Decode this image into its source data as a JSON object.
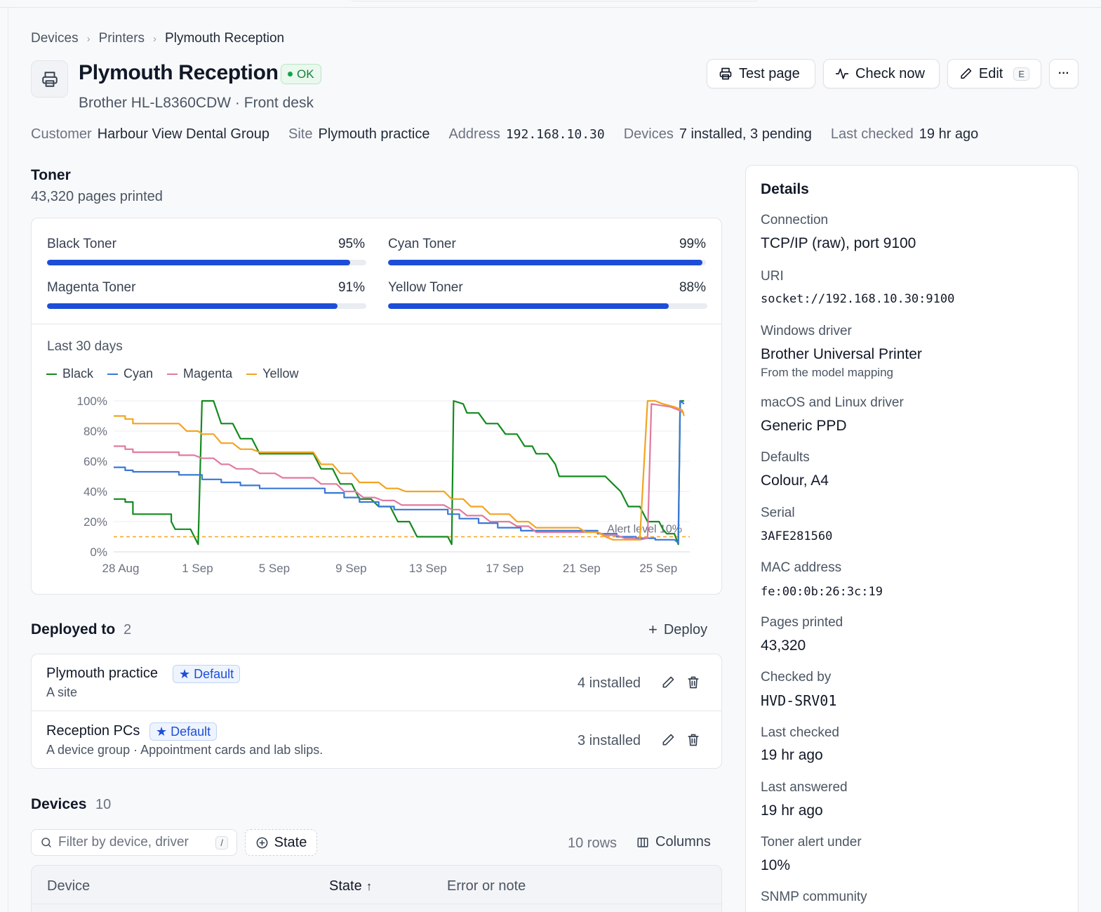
{
  "breadcrumb": [
    "Devices",
    "Printers",
    "Plymouth Reception"
  ],
  "header": {
    "title": "Plymouth Reception",
    "status": "OK",
    "subtitle": "Brother HL-L8360CDW · Front desk",
    "actions": {
      "test_page": "Test page",
      "check_now": "Check now",
      "edit": "Edit",
      "edit_shortcut": "E",
      "more": "···"
    }
  },
  "meta": [
    {
      "key": "Customer",
      "value": "Harbour View Dental Group"
    },
    {
      "key": "Site",
      "value": "Plymouth practice"
    },
    {
      "key": "Address",
      "value": "192.168.10.30"
    },
    {
      "key": "Devices",
      "value": "7 installed, 3 pending"
    },
    {
      "key": "Last checked",
      "value": "19 hr ago"
    }
  ],
  "toner": {
    "title": "Toner",
    "pages": "43,320 pages printed",
    "levels": [
      {
        "name": "Black Toner",
        "pct_label": "95%",
        "fraction": 0.95
      },
      {
        "name": "Cyan Toner",
        "pct_label": "99%",
        "fraction": 0.99
      },
      {
        "name": "Magenta Toner",
        "pct_label": "91%",
        "fraction": 0.91
      },
      {
        "name": "Yellow Toner",
        "pct_label": "88%",
        "fraction": 0.88
      }
    ]
  },
  "chart_data": {
    "type": "line",
    "title": "Last 30 days",
    "x_start": "28 Aug",
    "xticks": [
      {
        "day": 0,
        "label": "28 Aug"
      },
      {
        "day": 4,
        "label": "1 Sep"
      },
      {
        "day": 8,
        "label": "5 Sep"
      },
      {
        "day": 12,
        "label": "9 Sep"
      },
      {
        "day": 16,
        "label": "13 Sep"
      },
      {
        "day": 20,
        "label": "17 Sep"
      },
      {
        "day": 24,
        "label": "21 Sep"
      },
      {
        "day": 28,
        "label": "25 Sep"
      }
    ],
    "yticks": [
      "0%",
      "20%",
      "40%",
      "60%",
      "80%",
      "100%"
    ],
    "ylim": [
      0,
      100
    ],
    "xlim": [
      0,
      30
    ],
    "threshold": {
      "value": 10,
      "label": "Alert level 10%"
    },
    "series": [
      {
        "name": "Black",
        "color": "#138a1e",
        "points": [
          [
            0,
            35
          ],
          [
            0.6,
            35
          ],
          [
            0.6,
            33
          ],
          [
            1.0,
            33
          ],
          [
            1.0,
            25
          ],
          [
            3.0,
            25
          ],
          [
            3.0,
            20
          ],
          [
            3.2,
            15
          ],
          [
            4.0,
            15
          ],
          [
            4.4,
            5
          ],
          [
            4.6,
            100
          ],
          [
            5.2,
            100
          ],
          [
            5.6,
            85
          ],
          [
            6.2,
            85
          ],
          [
            6.6,
            75
          ],
          [
            7.2,
            75
          ],
          [
            7.6,
            65
          ],
          [
            10.4,
            65
          ],
          [
            10.8,
            55
          ],
          [
            11.4,
            55
          ],
          [
            11.8,
            45
          ],
          [
            12.4,
            45
          ],
          [
            12.8,
            35
          ],
          [
            13.4,
            35
          ],
          [
            13.8,
            30
          ],
          [
            14.4,
            30
          ],
          [
            14.8,
            20
          ],
          [
            15.4,
            20
          ],
          [
            15.8,
            10
          ],
          [
            17.4,
            10
          ],
          [
            17.6,
            5
          ],
          [
            17.7,
            100
          ],
          [
            18.2,
            98
          ],
          [
            18.4,
            92
          ],
          [
            19.0,
            92
          ],
          [
            19.4,
            85
          ],
          [
            20.0,
            85
          ],
          [
            20.4,
            78
          ],
          [
            21.0,
            78
          ],
          [
            21.4,
            70
          ],
          [
            21.8,
            70
          ],
          [
            22.0,
            65
          ],
          [
            22.6,
            65
          ],
          [
            23.0,
            58
          ],
          [
            23.2,
            50
          ],
          [
            25.6,
            50
          ],
          [
            26.0,
            45
          ],
          [
            26.4,
            40
          ],
          [
            26.8,
            30
          ],
          [
            27.4,
            30
          ],
          [
            27.6,
            25
          ],
          [
            27.8,
            20
          ],
          [
            28.4,
            20
          ],
          [
            28.6,
            15
          ],
          [
            28.8,
            12
          ],
          [
            29.2,
            12
          ],
          [
            29.4,
            5
          ],
          [
            29.5,
            100
          ],
          [
            29.7,
            100
          ]
        ]
      },
      {
        "name": "Cyan",
        "color": "#3a78d6",
        "points": [
          [
            0,
            56
          ],
          [
            0.6,
            56
          ],
          [
            0.6,
            54
          ],
          [
            1.0,
            54
          ],
          [
            1.0,
            53
          ],
          [
            3.4,
            53
          ],
          [
            3.4,
            51
          ],
          [
            4.6,
            51
          ],
          [
            4.6,
            48
          ],
          [
            5.6,
            48
          ],
          [
            5.6,
            46
          ],
          [
            6.6,
            46
          ],
          [
            6.6,
            44
          ],
          [
            7.6,
            44
          ],
          [
            7.6,
            42
          ],
          [
            11.0,
            42
          ],
          [
            11.0,
            39
          ],
          [
            12.0,
            39
          ],
          [
            12.0,
            36
          ],
          [
            12.8,
            36
          ],
          [
            12.8,
            33
          ],
          [
            13.8,
            33
          ],
          [
            13.8,
            30
          ],
          [
            14.6,
            30
          ],
          [
            14.6,
            28
          ],
          [
            17.4,
            28
          ],
          [
            17.4,
            25
          ],
          [
            18.0,
            25
          ],
          [
            18.0,
            22
          ],
          [
            19.0,
            22
          ],
          [
            19.0,
            19
          ],
          [
            20.0,
            19
          ],
          [
            20.0,
            16
          ],
          [
            21.2,
            16
          ],
          [
            21.2,
            14
          ],
          [
            25.2,
            14
          ],
          [
            25.2,
            12
          ],
          [
            26.2,
            12
          ],
          [
            26.2,
            10
          ],
          [
            27.2,
            10
          ],
          [
            27.2,
            9
          ],
          [
            28.2,
            9
          ],
          [
            28.2,
            8
          ],
          [
            29.2,
            8
          ],
          [
            29.4,
            6
          ],
          [
            29.5,
            100
          ],
          [
            29.7,
            98
          ]
        ]
      },
      {
        "name": "Magenta",
        "color": "#e07aa0",
        "points": [
          [
            0,
            70
          ],
          [
            0.6,
            70
          ],
          [
            0.6,
            68
          ],
          [
            1.0,
            68
          ],
          [
            1.0,
            66
          ],
          [
            3.4,
            66
          ],
          [
            3.4,
            64
          ],
          [
            4.2,
            64
          ],
          [
            4.6,
            62
          ],
          [
            5.2,
            62
          ],
          [
            5.6,
            58
          ],
          [
            6.0,
            58
          ],
          [
            6.4,
            55
          ],
          [
            7.2,
            55
          ],
          [
            7.6,
            52
          ],
          [
            8.4,
            52
          ],
          [
            8.8,
            49
          ],
          [
            10.4,
            49
          ],
          [
            10.8,
            45
          ],
          [
            11.6,
            45
          ],
          [
            12.0,
            40
          ],
          [
            12.6,
            40
          ],
          [
            13.0,
            36
          ],
          [
            13.6,
            36
          ],
          [
            14.0,
            34
          ],
          [
            14.6,
            34
          ],
          [
            15.0,
            31
          ],
          [
            17.2,
            31
          ],
          [
            17.6,
            28
          ],
          [
            18.0,
            28
          ],
          [
            18.4,
            24
          ],
          [
            19.2,
            24
          ],
          [
            19.6,
            20
          ],
          [
            20.6,
            20
          ],
          [
            21.0,
            17
          ],
          [
            21.6,
            17
          ],
          [
            22.0,
            13
          ],
          [
            25.2,
            13
          ],
          [
            25.6,
            11
          ],
          [
            26.2,
            11
          ],
          [
            26.6,
            9
          ],
          [
            27.0,
            9
          ],
          [
            27.4,
            8
          ],
          [
            27.8,
            9
          ],
          [
            28.0,
            98
          ],
          [
            29.0,
            96
          ],
          [
            29.4,
            94
          ],
          [
            29.7,
            92
          ]
        ]
      },
      {
        "name": "Yellow",
        "color": "#f2a421",
        "points": [
          [
            0,
            90
          ],
          [
            0.6,
            90
          ],
          [
            0.6,
            88
          ],
          [
            1.0,
            88
          ],
          [
            1.0,
            85
          ],
          [
            3.4,
            85
          ],
          [
            3.8,
            80
          ],
          [
            4.4,
            80
          ],
          [
            4.6,
            78
          ],
          [
            5.2,
            78
          ],
          [
            5.6,
            72
          ],
          [
            6.2,
            72
          ],
          [
            6.6,
            68
          ],
          [
            7.2,
            68
          ],
          [
            7.6,
            66
          ],
          [
            10.4,
            66
          ],
          [
            10.8,
            58
          ],
          [
            11.4,
            58
          ],
          [
            11.8,
            52
          ],
          [
            12.4,
            52
          ],
          [
            12.8,
            46
          ],
          [
            13.8,
            46
          ],
          [
            14.2,
            42
          ],
          [
            14.8,
            42
          ],
          [
            15.2,
            40
          ],
          [
            17.2,
            40
          ],
          [
            17.6,
            35
          ],
          [
            18.2,
            35
          ],
          [
            18.6,
            30
          ],
          [
            19.2,
            30
          ],
          [
            19.6,
            25
          ],
          [
            20.6,
            25
          ],
          [
            21.0,
            20
          ],
          [
            21.6,
            20
          ],
          [
            22.0,
            16
          ],
          [
            24.2,
            16
          ],
          [
            24.6,
            13
          ],
          [
            25.2,
            13
          ],
          [
            25.6,
            10
          ],
          [
            26.0,
            8
          ],
          [
            27.4,
            8
          ],
          [
            27.8,
            100
          ],
          [
            28.2,
            100
          ],
          [
            28.6,
            98
          ],
          [
            29.2,
            96
          ],
          [
            29.6,
            94
          ],
          [
            29.7,
            90
          ]
        ]
      }
    ]
  },
  "deployed": {
    "title": "Deployed to",
    "count": "2",
    "deploy_label": "Deploy",
    "rows": [
      {
        "name": "Plymouth practice",
        "badge": "Default",
        "sub": "A site",
        "installed": "4 installed"
      },
      {
        "name": "Reception PCs",
        "badge": "Default",
        "sub": "A device group · Appointment cards and lab slips.",
        "installed": "3 installed"
      }
    ]
  },
  "devices": {
    "title": "Devices",
    "count": "10",
    "filter_placeholder": "Filter by device, driver",
    "filter_shortcut": "/",
    "state_chip": "State",
    "rows_label": "10 rows",
    "columns_label": "Columns",
    "headers": [
      "Device",
      "State",
      "Error or note"
    ]
  },
  "details": {
    "title": "Details",
    "items": [
      {
        "label": "Connection",
        "value": "TCP/IP (raw), port 9100"
      },
      {
        "label": "URI",
        "value": "socket://192.168.10.30:9100"
      },
      {
        "label": "Windows driver",
        "value": "Brother Universal Printer",
        "note": "From the model mapping"
      },
      {
        "label": "macOS and Linux driver",
        "value": "Generic PPD"
      },
      {
        "label": "Defaults",
        "value": "Colour, A4"
      },
      {
        "label": "Serial",
        "value": "3AFE281560"
      },
      {
        "label": "MAC address",
        "value": "fe:00:0b:26:3c:19"
      },
      {
        "label": "Pages printed",
        "value": "43,320"
      },
      {
        "label": "Checked by",
        "value": "HVD-SRV01"
      },
      {
        "label": "Last checked",
        "value": "19 hr ago"
      },
      {
        "label": "Last answered",
        "value": "19 hr ago"
      },
      {
        "label": "Toner alert under",
        "value": "10%"
      },
      {
        "label": "SNMP community",
        "value": ""
      }
    ]
  }
}
